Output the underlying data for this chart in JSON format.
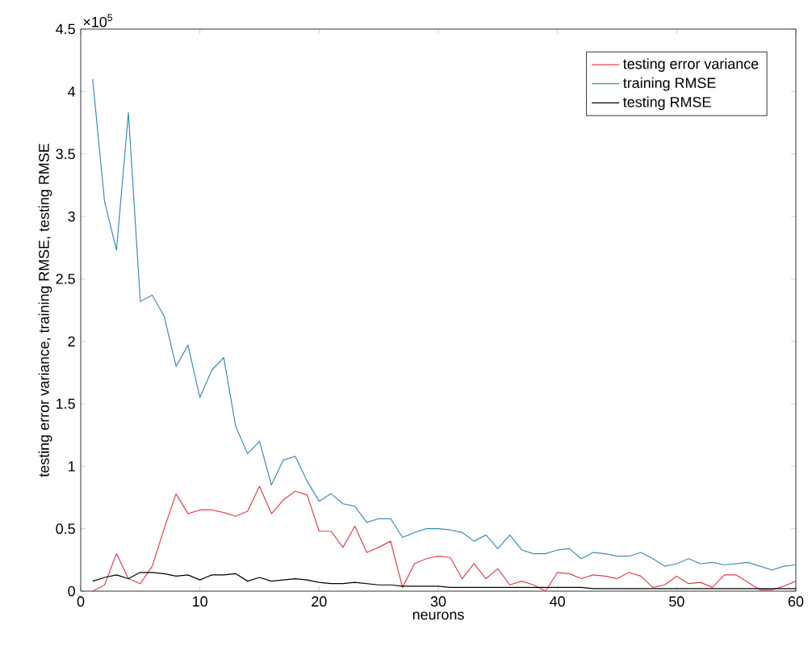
{
  "chart_data": {
    "type": "line",
    "xlabel": "neurons",
    "ylabel": "testing error variance, training RMSE,  testing RMSE",
    "annotations": [
      "×10$^{5}$"
    ],
    "x": [
      1,
      2,
      3,
      4,
      5,
      6,
      7,
      8,
      9,
      10,
      11,
      12,
      13,
      14,
      15,
      16,
      17,
      18,
      19,
      20,
      21,
      22,
      23,
      24,
      25,
      26,
      27,
      28,
      29,
      30,
      31,
      32,
      33,
      34,
      35,
      36,
      37,
      38,
      39,
      40,
      41,
      42,
      43,
      44,
      45,
      46,
      47,
      48,
      49,
      50,
      51,
      52,
      53,
      54,
      55,
      56,
      57,
      58,
      59,
      60
    ],
    "series": [
      {
        "name": "testing error variance",
        "color": "#e0404f",
        "values": [
          0.0,
          0.05,
          0.3,
          0.1,
          0.06,
          0.2,
          0.5,
          0.78,
          0.62,
          0.65,
          0.65,
          0.63,
          0.6,
          0.64,
          0.84,
          0.62,
          0.73,
          0.8,
          0.77,
          0.48,
          0.48,
          0.35,
          0.52,
          0.31,
          0.35,
          0.4,
          0.03,
          0.22,
          0.26,
          0.28,
          0.27,
          0.1,
          0.22,
          0.1,
          0.18,
          0.05,
          0.08,
          0.05,
          0.0,
          0.15,
          0.14,
          0.1,
          0.13,
          0.12,
          0.1,
          0.15,
          0.12,
          0.03,
          0.05,
          0.12,
          0.06,
          0.07,
          0.03,
          0.13,
          0.13,
          0.07,
          0.01,
          0.01,
          0.04,
          0.08
        ]
      },
      {
        "name": "training RMSE",
        "color": "#3a8fb7",
        "values": [
          4.1,
          3.12,
          2.73,
          3.83,
          2.32,
          2.37,
          2.2,
          1.8,
          1.97,
          1.55,
          1.77,
          1.87,
          1.32,
          1.1,
          1.2,
          0.85,
          1.05,
          1.08,
          0.88,
          0.72,
          0.78,
          0.7,
          0.68,
          0.55,
          0.58,
          0.58,
          0.43,
          0.47,
          0.5,
          0.5,
          0.49,
          0.47,
          0.4,
          0.45,
          0.34,
          0.45,
          0.33,
          0.3,
          0.3,
          0.33,
          0.34,
          0.26,
          0.31,
          0.3,
          0.28,
          0.28,
          0.31,
          0.26,
          0.2,
          0.22,
          0.26,
          0.22,
          0.23,
          0.21,
          0.22,
          0.23,
          0.2,
          0.17,
          0.2,
          0.21
        ]
      },
      {
        "name": "testing RMSE",
        "color": "#000000",
        "values": [
          0.08,
          0.11,
          0.13,
          0.1,
          0.15,
          0.15,
          0.14,
          0.12,
          0.13,
          0.09,
          0.13,
          0.13,
          0.14,
          0.08,
          0.11,
          0.08,
          0.09,
          0.1,
          0.09,
          0.07,
          0.06,
          0.06,
          0.07,
          0.06,
          0.05,
          0.05,
          0.04,
          0.04,
          0.04,
          0.04,
          0.03,
          0.03,
          0.03,
          0.03,
          0.03,
          0.03,
          0.03,
          0.03,
          0.03,
          0.03,
          0.03,
          0.03,
          0.02,
          0.02,
          0.02,
          0.02,
          0.02,
          0.02,
          0.02,
          0.02,
          0.02,
          0.02,
          0.02,
          0.02,
          0.02,
          0.02,
          0.02,
          0.02,
          0.02,
          0.02
        ]
      }
    ],
    "xlim": [
      0,
      60
    ],
    "xticks": [
      0,
      10,
      20,
      30,
      40,
      50,
      60
    ],
    "ylim": [
      0,
      4.5
    ],
    "yticks": [
      0,
      0.5,
      1,
      1.5,
      2,
      2.5,
      3,
      3.5,
      4,
      4.5
    ],
    "legend": "top right",
    "grid": false,
    "marker": "none",
    "line_style": "solid"
  }
}
